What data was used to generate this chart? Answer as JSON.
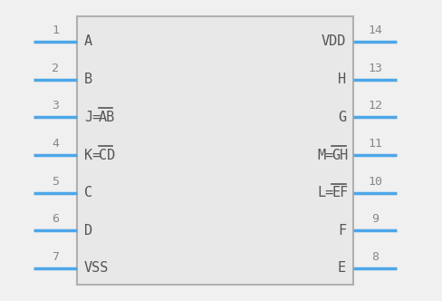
{
  "bg_color": "#f0f0f0",
  "box_color": "#b0b0b0",
  "box_fill": "#e8e8e8",
  "pin_color": "#4da6e8",
  "text_color": "#555555",
  "num_color": "#888888",
  "left_pins": [
    {
      "num": "1",
      "label": "A",
      "prefix": "",
      "overline": "",
      "row": 1
    },
    {
      "num": "2",
      "label": "B",
      "prefix": "",
      "overline": "",
      "row": 2
    },
    {
      "num": "3",
      "label": "",
      "prefix": "J=",
      "overline": "AB",
      "row": 3
    },
    {
      "num": "4",
      "label": "",
      "prefix": "K=",
      "overline": "CD",
      "row": 4
    },
    {
      "num": "5",
      "label": "C",
      "prefix": "",
      "overline": "",
      "row": 5
    },
    {
      "num": "6",
      "label": "D",
      "prefix": "",
      "overline": "",
      "row": 6
    },
    {
      "num": "7",
      "label": "VSS",
      "prefix": "",
      "overline": "",
      "row": 7
    }
  ],
  "right_pins": [
    {
      "num": "14",
      "label": "VDD",
      "prefix": "",
      "overline": "",
      "row": 1
    },
    {
      "num": "13",
      "label": "H",
      "prefix": "",
      "overline": "",
      "row": 2
    },
    {
      "num": "12",
      "label": "G",
      "prefix": "",
      "overline": "",
      "row": 3
    },
    {
      "num": "11",
      "label": "",
      "prefix": "M=",
      "overline": "GH",
      "row": 4
    },
    {
      "num": "10",
      "label": "",
      "prefix": "L=",
      "overline": "EF",
      "row": 5
    },
    {
      "num": "9",
      "label": "F",
      "prefix": "",
      "overline": "",
      "row": 6
    },
    {
      "num": "8",
      "label": "E",
      "prefix": "",
      "overline": "",
      "row": 7
    }
  ],
  "n_rows": 7,
  "fig_w": 4.88,
  "fig_h": 3.32,
  "dpi": 100
}
